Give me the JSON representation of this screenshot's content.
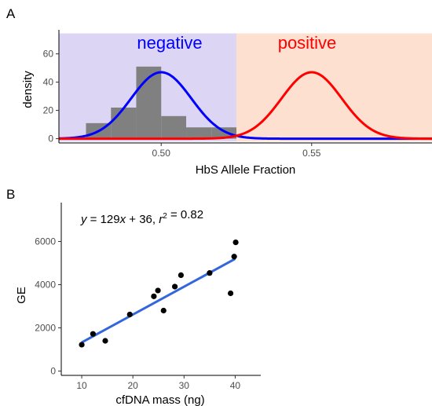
{
  "chart_data": [
    {
      "panel": "A",
      "type": "area",
      "xlabel": "HbS Allele Fraction",
      "ylabel": "density",
      "xlim": [
        0.466,
        0.59
      ],
      "ylim": [
        -3,
        77
      ],
      "x_ticks": [
        0.5,
        0.55
      ],
      "x_tick_labels": [
        "0.50",
        "0.55"
      ],
      "y_ticks": [
        0,
        20,
        40,
        60
      ],
      "regions": [
        {
          "label": "negative",
          "from": 0.466,
          "to": 0.525,
          "fill": "#dcd5f4",
          "text_color": "#0000ff"
        },
        {
          "label": "positive",
          "from": 0.525,
          "to": 0.59,
          "fill": "#fde0cf",
          "text_color": "#ff0000"
        }
      ],
      "histogram": {
        "bin_edges": [
          0.475,
          0.4833,
          0.4917,
          0.5,
          0.5083,
          0.5167,
          0.525
        ],
        "counts": [
          11,
          22,
          51,
          16,
          8,
          8
        ],
        "fill": "#808080"
      },
      "curves": [
        {
          "color": "#0000ff",
          "mean": 0.5,
          "peak": 47
        },
        {
          "color": "#ff0000",
          "mean": 0.55,
          "peak": 47
        }
      ]
    },
    {
      "panel": "B",
      "type": "scatter",
      "xlabel": "cfDNA mass (ng)",
      "ylabel": "GE",
      "xlim": [
        6,
        45
      ],
      "ylim": [
        -200,
        7800
      ],
      "x_ticks": [
        10,
        20,
        30,
        40
      ],
      "y_ticks": [
        0,
        2000,
        4000,
        6000
      ],
      "annotation": {
        "prefix": "y = 129x + 36, ",
        "r_label": "r",
        "sup": "2",
        "suffix": " = 0.82"
      },
      "points": [
        {
          "x": 10,
          "y": 1220
        },
        {
          "x": 12.2,
          "y": 1720
        },
        {
          "x": 14.6,
          "y": 1400
        },
        {
          "x": 19.4,
          "y": 2620
        },
        {
          "x": 24.1,
          "y": 3460
        },
        {
          "x": 24.9,
          "y": 3730
        },
        {
          "x": 26,
          "y": 2800
        },
        {
          "x": 28.2,
          "y": 3910
        },
        {
          "x": 29.4,
          "y": 4440
        },
        {
          "x": 35,
          "y": 4540
        },
        {
          "x": 39.1,
          "y": 3600
        },
        {
          "x": 39.8,
          "y": 5300
        },
        {
          "x": 40.1,
          "y": 5960
        }
      ],
      "fit": {
        "x": [
          10,
          40
        ],
        "y": [
          1326,
          5196
        ],
        "color": "#3366dd"
      }
    }
  ]
}
